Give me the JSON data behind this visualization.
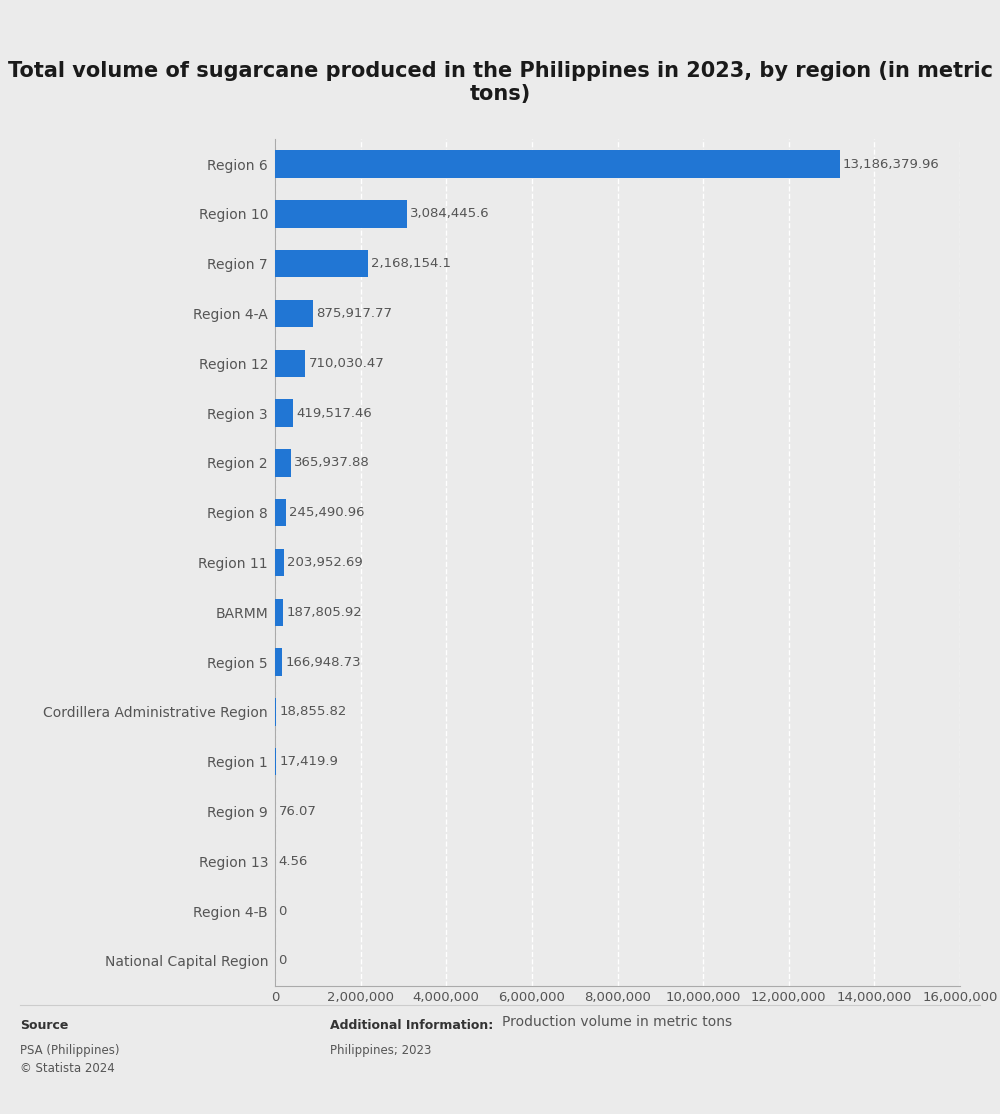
{
  "title": "Total volume of sugarcane produced in the Philippines in 2023, by region (in metric\ntons)",
  "xlabel": "Production volume in metric tons",
  "categories": [
    "Region 6",
    "Region 10",
    "Region 7",
    "Region 4-A",
    "Region 12",
    "Region 3",
    "Region 2",
    "Region 8",
    "Region 11",
    "BARMM",
    "Region 5",
    "Cordillera Administrative Region",
    "Region 1",
    "Region 9",
    "Region 13",
    "Region 4-B",
    "National Capital Region"
  ],
  "values": [
    13186379.96,
    3084445.6,
    2168154.1,
    875917.77,
    710030.47,
    419517.46,
    365937.88,
    245490.96,
    203952.69,
    187805.92,
    166948.73,
    18855.82,
    17419.9,
    76.07,
    4.56,
    0,
    0
  ],
  "value_labels": [
    "13,186,379.96",
    "3,084,445.6",
    "2,168,154.1",
    "875,917.77",
    "710,030.47",
    "419,517.46",
    "365,937.88",
    "245,490.96",
    "203,952.69",
    "187,805.92",
    "166,948.73",
    "18,855.82",
    "17,419.9",
    "76.07",
    "4.56",
    "0",
    "0"
  ],
  "bar_color": "#2176d4",
  "background_color": "#ebebeb",
  "plot_background_color": "#ebebeb",
  "title_fontsize": 15,
  "label_fontsize": 10,
  "tick_fontsize": 9.5,
  "value_fontsize": 9.5,
  "xlabel_fontsize": 10,
  "xlim": [
    0,
    16000000
  ],
  "xticks": [
    0,
    2000000,
    4000000,
    6000000,
    8000000,
    10000000,
    12000000,
    14000000,
    16000000
  ],
  "source_label_bold": "Source",
  "source_text_normal": "PSA (Philippines)\n© Statista 2024",
  "additional_label_bold": "Additional Information:",
  "additional_text_normal": "Philippines; 2023",
  "grid_color": "#ffffff",
  "axis_label_color": "#555555",
  "value_text_color": "#555555",
  "spine_color": "#aaaaaa"
}
